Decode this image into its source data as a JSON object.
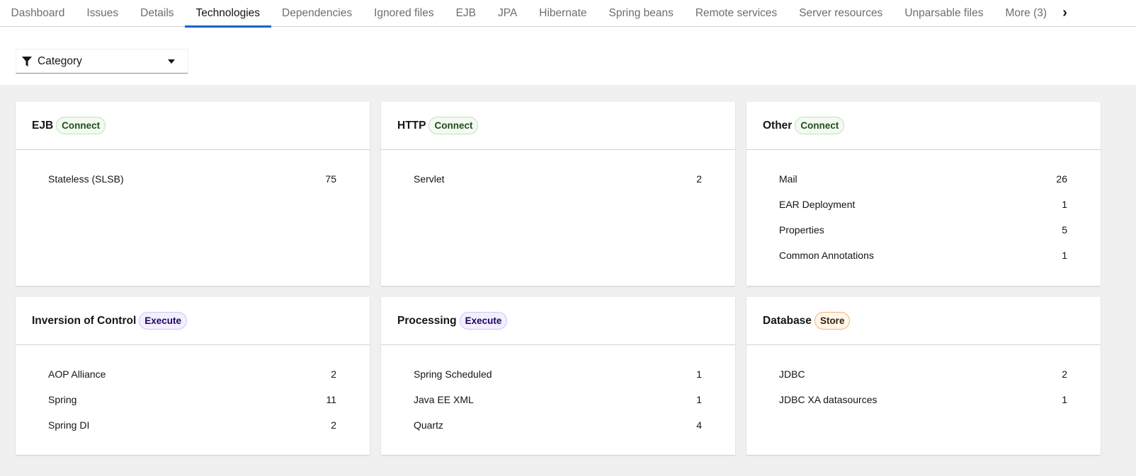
{
  "tabs": [
    "Dashboard",
    "Issues",
    "Details",
    "Technologies",
    "Dependencies",
    "Ignored files",
    "EJB",
    "JPA",
    "Hibernate",
    "Spring beans",
    "Remote services",
    "Server resources",
    "Unparsable files",
    "More (3)"
  ],
  "active_tab": "Technologies",
  "filter": {
    "label": "Category"
  },
  "colors": {
    "accent": "#0066cc",
    "connect": "#3e8635",
    "execute": "#5752d1",
    "store": "#f0ab00"
  },
  "cards": [
    {
      "title": "EJB",
      "badge": "Connect",
      "items": [
        {
          "name": "Stateless (SLSB)",
          "count": "75"
        }
      ]
    },
    {
      "title": "HTTP",
      "badge": "Connect",
      "items": [
        {
          "name": "Servlet",
          "count": "2"
        }
      ]
    },
    {
      "title": "Other",
      "badge": "Connect",
      "items": [
        {
          "name": "Mail",
          "count": "26"
        },
        {
          "name": "EAR Deployment",
          "count": "1"
        },
        {
          "name": "Properties",
          "count": "5"
        },
        {
          "name": "Common Annotations",
          "count": "1"
        }
      ]
    },
    {
      "title": "Inversion of Control",
      "badge": "Execute",
      "items": [
        {
          "name": "AOP Alliance",
          "count": "2"
        },
        {
          "name": "Spring",
          "count": "11"
        },
        {
          "name": "Spring DI",
          "count": "2"
        }
      ]
    },
    {
      "title": "Processing",
      "badge": "Execute",
      "items": [
        {
          "name": "Spring Scheduled",
          "count": "1"
        },
        {
          "name": "Java EE XML",
          "count": "1"
        },
        {
          "name": "Quartz",
          "count": "4"
        }
      ]
    },
    {
      "title": "Database",
      "badge": "Store",
      "items": [
        {
          "name": "JDBC",
          "count": "2"
        },
        {
          "name": "JDBC XA datasources",
          "count": "1"
        }
      ]
    }
  ]
}
